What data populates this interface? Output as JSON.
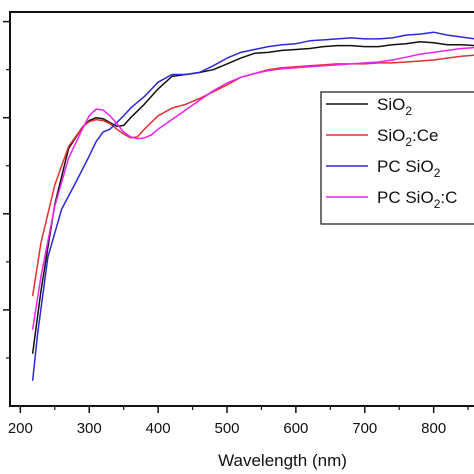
{
  "chart_data": {
    "type": "line",
    "title": "",
    "xlabel": "Wavelength (nm)",
    "ylabel": "",
    "xlim": [
      185,
      860
    ],
    "ylim": [
      0,
      4.1
    ],
    "x_ticks": [
      200,
      300,
      400,
      500,
      600,
      700,
      800
    ],
    "x_tick_labels": [
      "200",
      "300",
      "400",
      "500",
      "600",
      "700",
      "800"
    ],
    "y_ticks": [
      1,
      2,
      3,
      4
    ],
    "grid": false,
    "legend_position": "right",
    "legend_labels": [
      {
        "base": "SiO",
        "sub": "2",
        "suffix": ""
      },
      {
        "base": "SiO",
        "sub": "2",
        "suffix": ":Ce"
      },
      {
        "base": "PC SiO",
        "sub": "2",
        "suffix": ""
      },
      {
        "base": "PC SiO",
        "sub": "2",
        "suffix": ":C"
      }
    ],
    "series": [
      {
        "color": "#111111",
        "x": [
          218,
          230,
          250,
          270,
          290,
          300,
          310,
          320,
          330,
          340,
          350,
          360,
          380,
          400,
          420,
          440,
          460,
          480,
          500,
          520,
          540,
          560,
          580,
          600,
          620,
          640,
          660,
          680,
          700,
          720,
          740,
          760,
          780,
          800,
          820,
          840,
          860
        ],
        "y": [
          0.55,
          1.2,
          2.1,
          2.68,
          2.9,
          2.97,
          3.0,
          2.99,
          2.95,
          2.91,
          2.92,
          3.0,
          3.14,
          3.3,
          3.43,
          3.45,
          3.47,
          3.5,
          3.56,
          3.62,
          3.67,
          3.68,
          3.7,
          3.71,
          3.72,
          3.74,
          3.75,
          3.75,
          3.74,
          3.74,
          3.76,
          3.77,
          3.79,
          3.78,
          3.76,
          3.76,
          3.75
        ]
      },
      {
        "color": "#e03030",
        "x": [
          218,
          230,
          250,
          270,
          290,
          300,
          310,
          320,
          330,
          340,
          350,
          360,
          370,
          380,
          400,
          420,
          440,
          460,
          480,
          500,
          520,
          540,
          560,
          580,
          600,
          620,
          640,
          660,
          680,
          700,
          720,
          740,
          760,
          780,
          800,
          820,
          840,
          860
        ],
        "y": [
          1.15,
          1.7,
          2.3,
          2.7,
          2.9,
          2.96,
          2.98,
          2.97,
          2.94,
          2.88,
          2.83,
          2.79,
          2.8,
          2.88,
          3.02,
          3.1,
          3.14,
          3.2,
          3.27,
          3.34,
          3.42,
          3.46,
          3.5,
          3.52,
          3.53,
          3.54,
          3.55,
          3.56,
          3.56,
          3.56,
          3.57,
          3.57,
          3.58,
          3.59,
          3.6,
          3.62,
          3.64,
          3.65
        ]
      },
      {
        "color": "#2a2ad8",
        "x": [
          218,
          225,
          240,
          260,
          280,
          300,
          310,
          320,
          330,
          340,
          350,
          360,
          380,
          400,
          420,
          440,
          460,
          480,
          500,
          520,
          540,
          560,
          580,
          600,
          620,
          640,
          660,
          680,
          700,
          720,
          740,
          760,
          780,
          800,
          820,
          840,
          860
        ],
        "y": [
          0.27,
          0.75,
          1.55,
          2.05,
          2.32,
          2.6,
          2.75,
          2.85,
          2.88,
          2.95,
          3.02,
          3.1,
          3.22,
          3.37,
          3.45,
          3.45,
          3.47,
          3.54,
          3.62,
          3.68,
          3.71,
          3.74,
          3.76,
          3.77,
          3.8,
          3.81,
          3.82,
          3.83,
          3.82,
          3.82,
          3.83,
          3.86,
          3.87,
          3.89,
          3.86,
          3.84,
          3.82
        ]
      },
      {
        "color": "#ee22ee",
        "x": [
          218,
          230,
          250,
          270,
          290,
          300,
          310,
          320,
          330,
          340,
          350,
          360,
          370,
          380,
          390,
          400,
          420,
          440,
          460,
          480,
          500,
          520,
          540,
          560,
          580,
          600,
          620,
          640,
          660,
          680,
          700,
          720,
          740,
          760,
          780,
          800,
          820,
          840,
          860
        ],
        "y": [
          0.8,
          1.35,
          2.08,
          2.58,
          2.88,
          3.02,
          3.09,
          3.08,
          3.02,
          2.94,
          2.85,
          2.8,
          2.78,
          2.79,
          2.82,
          2.88,
          2.98,
          3.08,
          3.18,
          3.28,
          3.36,
          3.42,
          3.46,
          3.49,
          3.51,
          3.52,
          3.53,
          3.54,
          3.55,
          3.56,
          3.57,
          3.58,
          3.6,
          3.63,
          3.66,
          3.68,
          3.7,
          3.72,
          3.73
        ]
      }
    ]
  }
}
